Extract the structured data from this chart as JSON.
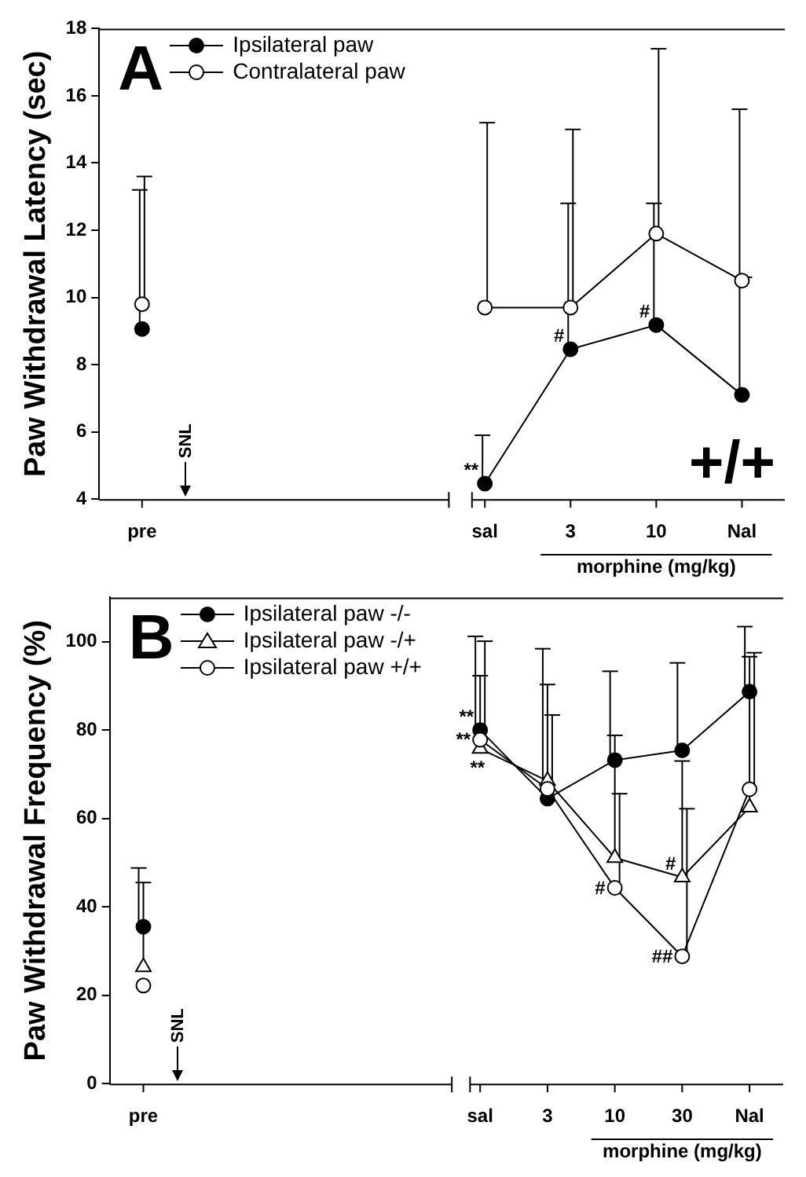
{
  "chart_data": [
    {
      "type": "line",
      "title": "A",
      "ylabel": "Paw Withdrawal Latency (sec)",
      "xlabel": "morphine (mg/kg)",
      "categories": [
        "pre",
        null,
        null,
        null,
        "sal",
        "3",
        "10",
        "Nal"
      ],
      "ylim": [
        4,
        18
      ],
      "yticks": [
        4,
        6,
        8,
        10,
        12,
        14,
        16,
        18
      ],
      "grid": false,
      "legend": "top left",
      "series": [
        {
          "name": "Ipsilateral paw",
          "color": "#000000",
          "marker": "circle",
          "values": [
            9.06,
            null,
            null,
            null,
            4.46,
            8.46,
            9.18,
            7.1
          ],
          "errors": [
            [
              9.06,
              13.2
            ],
            null,
            null,
            null,
            [
              4.46,
              5.9
            ],
            [
              8.46,
              12.8
            ],
            [
              9.18,
              12.8
            ],
            [
              7.1,
              15.6
            ]
          ]
        },
        {
          "name": "Contralateral paw",
          "color": "#ffffff",
          "marker": "circle",
          "values": [
            9.8,
            null,
            null,
            null,
            9.7,
            9.7,
            11.9,
            10.5
          ],
          "errors": [
            [
              9.8,
              13.6
            ],
            null,
            null,
            null,
            [
              9.7,
              15.2
            ],
            [
              9.7,
              15
            ],
            [
              11.9,
              17.4
            ],
            [
              10.5,
              10.6
            ]
          ]
        }
      ],
      "annotations": [
        "SNL",
        "+/+",
        {
          "text": "**",
          "x": "sal",
          "y": 4.46
        },
        {
          "text": "#",
          "x": "3",
          "y": 8.46
        },
        {
          "text": "#",
          "x": "10",
          "y": 9.18
        }
      ]
    },
    {
      "type": "line",
      "title": "B",
      "ylabel": "Paw Withdrawal Frequency (%)",
      "xlabel": "morphine (mg/kg)",
      "categories": [
        "pre",
        null,
        null,
        null,
        null,
        "sal",
        "3",
        "10",
        "30",
        "Nal"
      ],
      "ylim": [
        0,
        110
      ],
      "yticks": [
        0,
        20,
        40,
        60,
        80,
        100
      ],
      "grid": false,
      "legend": "top left",
      "series": [
        {
          "name": "Ipsilateral paw -/-",
          "color": "#000000",
          "marker": "circle",
          "values": [
            35.5,
            null,
            null,
            null,
            null,
            80,
            64.5,
            73.2,
            75.4,
            88.7
          ],
          "errors": [
            [
              35.5,
              48.8
            ],
            null,
            null,
            null,
            null,
            [
              80,
              101.2
            ],
            [
              64.5,
              98.4
            ],
            [
              73.2,
              93.3
            ],
            [
              75.4,
              95.2
            ],
            [
              88.7,
              103.4
            ]
          ]
        },
        {
          "name": "Ipsilateral paw -/+",
          "color": "#ffffff",
          "marker": "triangle",
          "values": [
            26.4,
            null,
            null,
            null,
            null,
            75.8,
            68.5,
            51.1,
            46.7,
            62.5
          ],
          "errors": [
            [
              26.4,
              45.5
            ],
            null,
            null,
            null,
            null,
            [
              75.8,
              92.3
            ],
            [
              68.5,
              90.3
            ],
            [
              51.1,
              78.8
            ],
            [
              46.7,
              73
            ],
            [
              62.5,
              96.6
            ]
          ]
        },
        {
          "name": "Ipsilateral paw +/+",
          "color": "#ffffff",
          "marker": "circle",
          "values": [
            22.2,
            null,
            null,
            null,
            null,
            77.8,
            66.7,
            44.3,
            28.8,
            66.6
          ],
          "errors": [
            null,
            null,
            null,
            null,
            null,
            [
              77.8,
              100.1
            ],
            [
              66.7,
              83.4
            ],
            [
              44.3,
              65.6
            ],
            [
              28.8,
              62.2
            ],
            [
              66.6,
              97.5
            ]
          ]
        }
      ],
      "annotations": [
        "SNL",
        {
          "text": "**",
          "x": "sal",
          "y": 80
        },
        {
          "text": "**",
          "x": "sal",
          "y": 77.8
        },
        {
          "text": "**",
          "x": "sal",
          "y": 75.8
        },
        {
          "text": "#",
          "x": "10",
          "y": 44.3
        },
        {
          "text": "#",
          "x": "30",
          "y": 46.7
        },
        {
          "text": "##",
          "x": "30",
          "y": 28.8
        }
      ]
    }
  ]
}
